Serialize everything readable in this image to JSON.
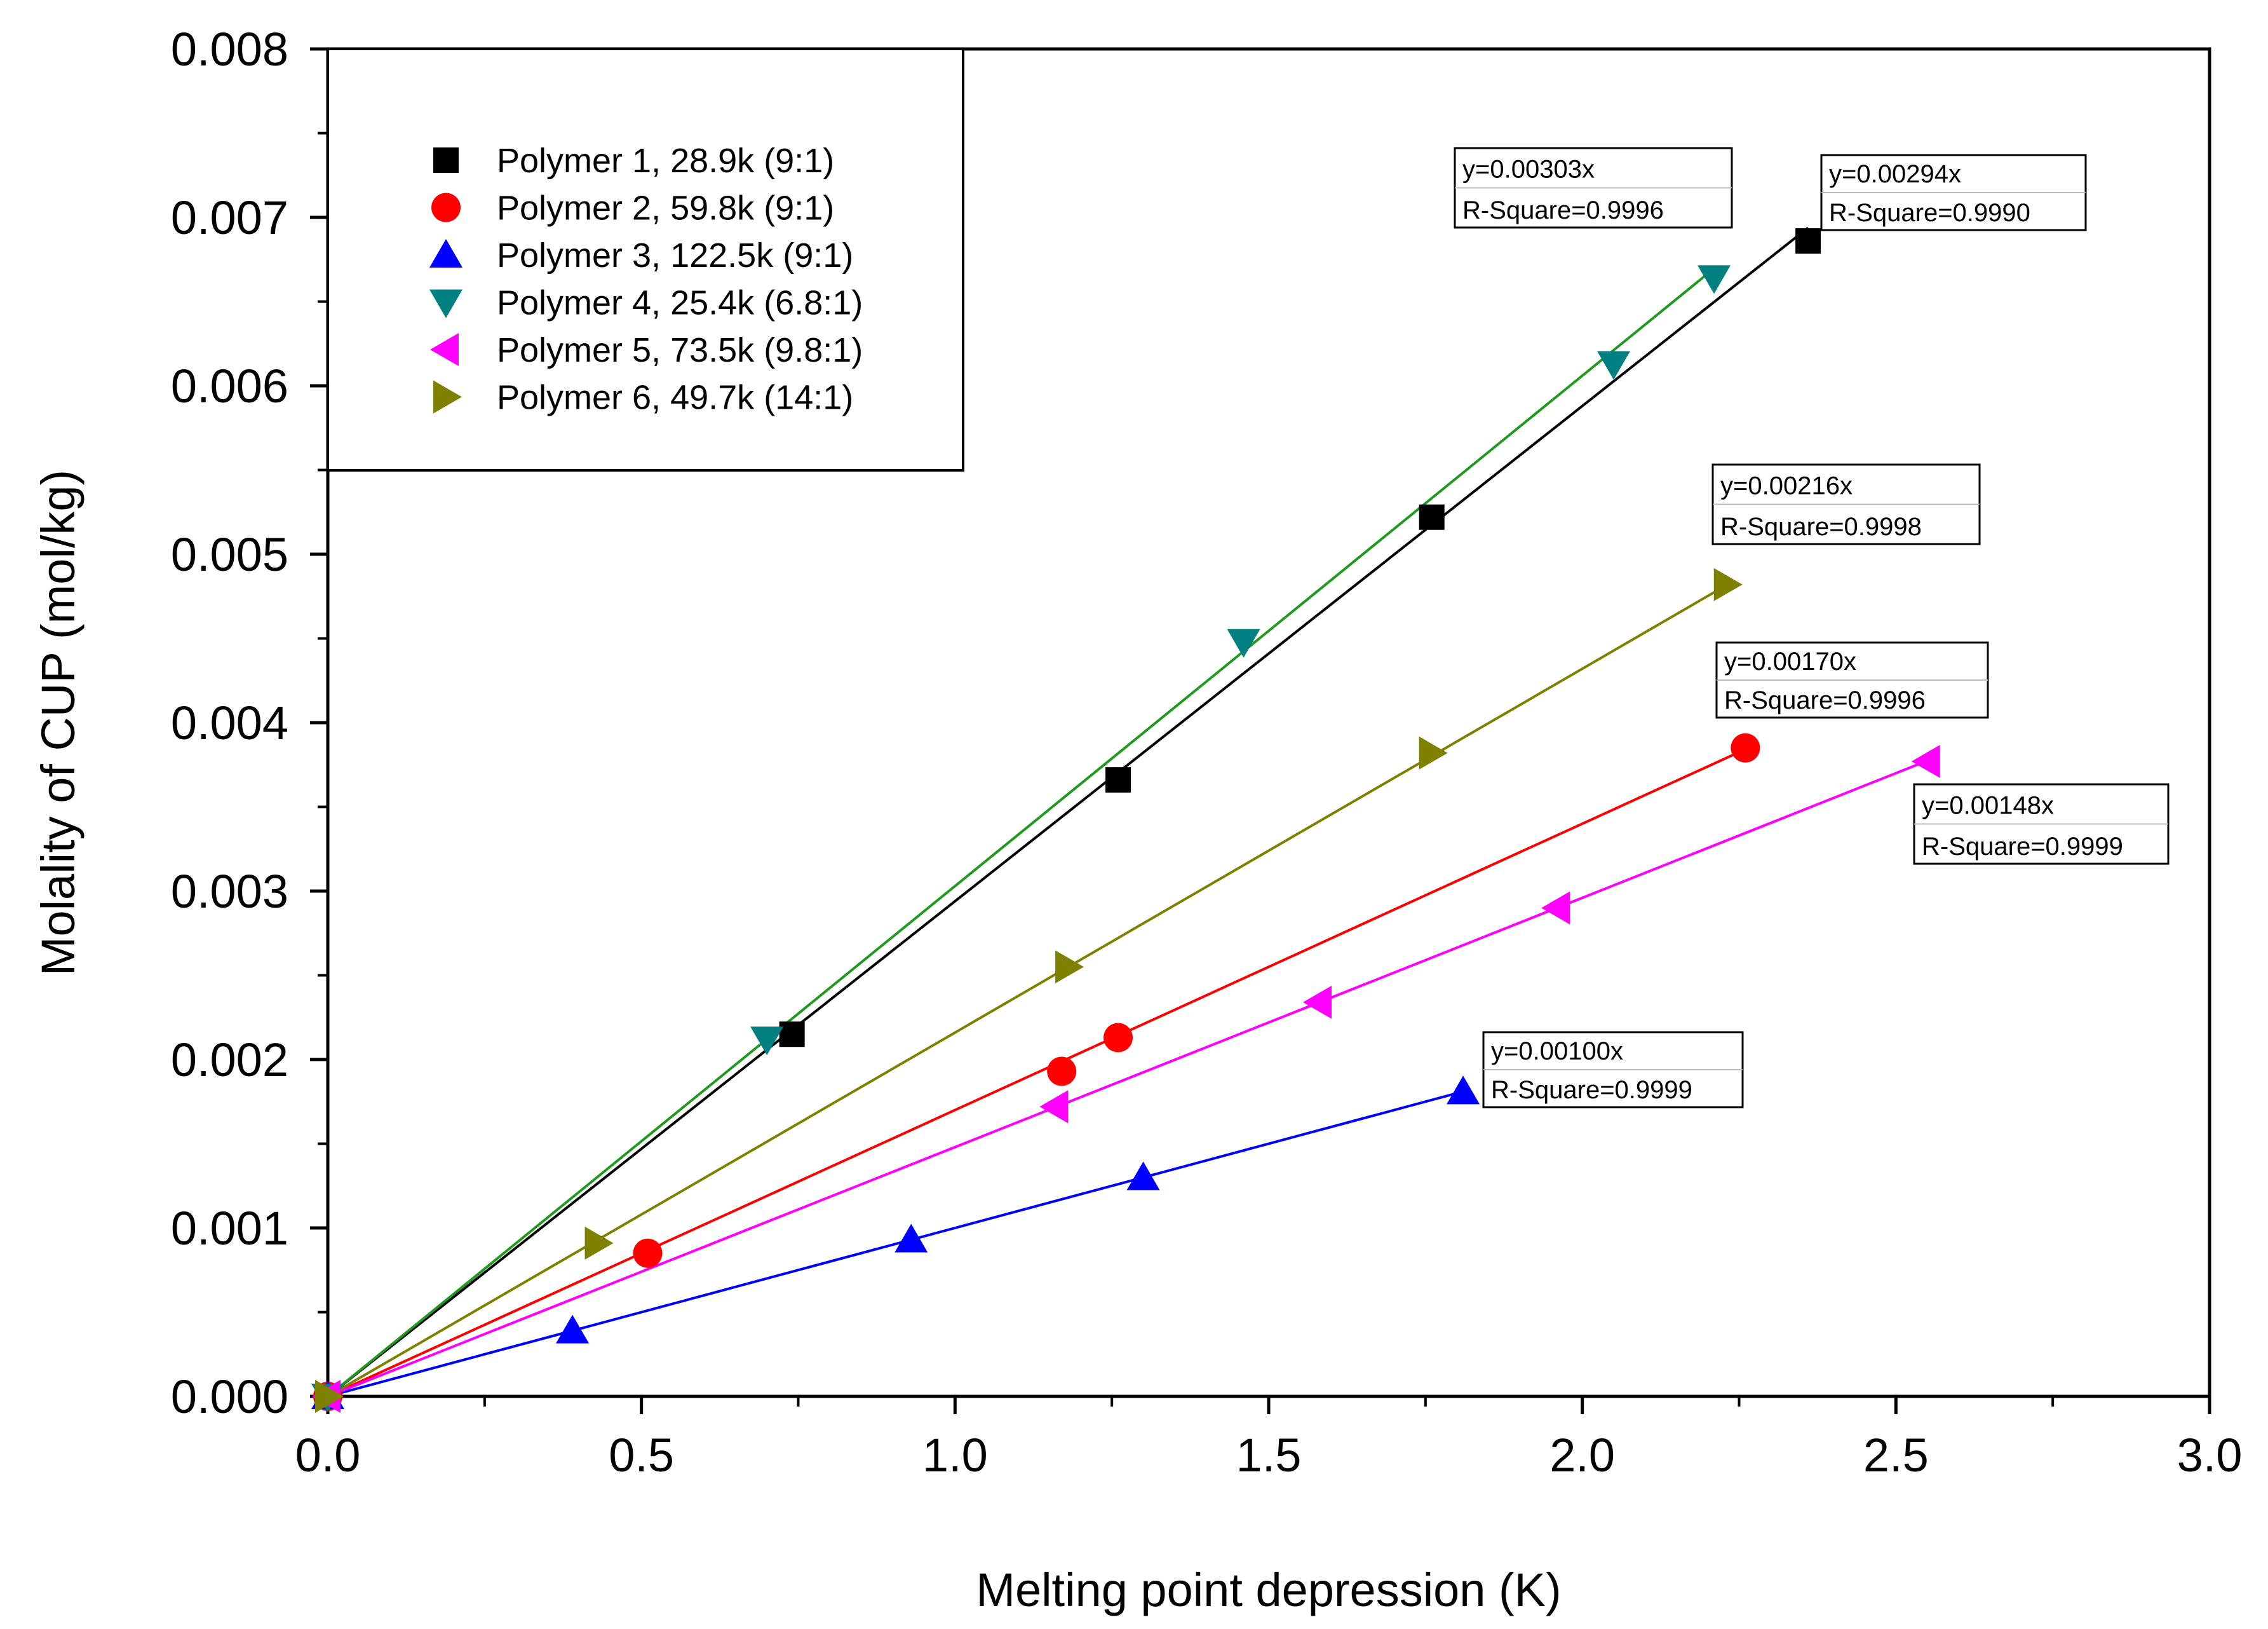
{
  "chart_data": {
    "type": "scatter",
    "xlabel": "Melting point depression (K)",
    "ylabel": "Molality of CUP (mol/kg)",
    "xlim": [
      0,
      3.0
    ],
    "ylim": [
      0,
      0.008
    ],
    "x_ticks": [
      "0.0",
      "0.5",
      "1.0",
      "1.5",
      "2.0",
      "2.5",
      "3.0"
    ],
    "y_ticks": [
      "0.000",
      "0.001",
      "0.002",
      "0.003",
      "0.004",
      "0.005",
      "0.006",
      "0.007",
      "0.008"
    ],
    "grid": false,
    "legend_position": "top-left",
    "series": [
      {
        "name": "Polymer 1, 28.9k (9:1)",
        "color": "#000000",
        "marker": "square",
        "x": [
          0,
          0.74,
          1.26,
          1.76,
          2.36
        ],
        "y": [
          0,
          0.00215,
          0.00366,
          0.00522,
          0.00686
        ],
        "fit": {
          "slope": 0.00294,
          "equation": "y=0.00294x",
          "r_square": "R-Square=0.9990",
          "x_end": 2.36
        }
      },
      {
        "name": "Polymer 2, 59.8k (9:1)",
        "color": "#ff0000",
        "marker": "circle",
        "x": [
          0,
          0.51,
          1.17,
          1.26,
          2.26
        ],
        "y": [
          0,
          0.00085,
          0.00193,
          0.00213,
          0.00385
        ],
        "fit": {
          "slope": 0.0017,
          "equation": "y=0.00170x",
          "r_square": "R-Square=0.9996",
          "x_end": 2.26
        }
      },
      {
        "name": "Polymer 3, 122.5k (9:1)",
        "color": "#0000ff",
        "marker": "triangle-up",
        "x": [
          0,
          0.39,
          0.93,
          1.3,
          1.81
        ],
        "y": [
          0,
          0.00039,
          0.00093,
          0.0013,
          0.00181
        ],
        "fit": {
          "slope": 0.001,
          "equation": "y=0.00100x",
          "r_square": "R-Square=0.9999",
          "x_end": 1.81
        }
      },
      {
        "name": "Polymer 4, 25.4k (6.8:1)",
        "color": "#008080",
        "marker": "triangle-down",
        "x": [
          0,
          0.7,
          1.46,
          2.05,
          2.21
        ],
        "y": [
          0,
          0.00212,
          0.00448,
          0.00613,
          0.00664
        ],
        "fit": {
          "slope": 0.00303,
          "equation": "y=0.00303x",
          "r_square": "R-Square=0.9996",
          "x_end": 2.21,
          "line_color": "#1f9a1f"
        }
      },
      {
        "name": "Polymer 5, 73.5k (9.8:1)",
        "color": "#ff00ff",
        "marker": "triangle-left",
        "x": [
          0,
          1.16,
          1.58,
          1.96,
          2.55
        ],
        "y": [
          0,
          0.00172,
          0.00234,
          0.0029,
          0.00377
        ],
        "fit": {
          "slope": 0.00148,
          "equation": "y=0.00148x",
          "r_square": "R-Square=0.9999",
          "x_end": 2.55
        }
      },
      {
        "name": "Polymer 6, 49.7k (14:1)",
        "color": "#808000",
        "marker": "triangle-right",
        "x": [
          0,
          0.43,
          1.18,
          1.76,
          2.23
        ],
        "y": [
          0,
          0.00091,
          0.00255,
          0.00382,
          0.00482
        ],
        "fit": {
          "slope": 0.00216,
          "equation": "y=0.00216x",
          "r_square": "R-Square=0.9998",
          "x_end": 2.23
        }
      }
    ]
  }
}
